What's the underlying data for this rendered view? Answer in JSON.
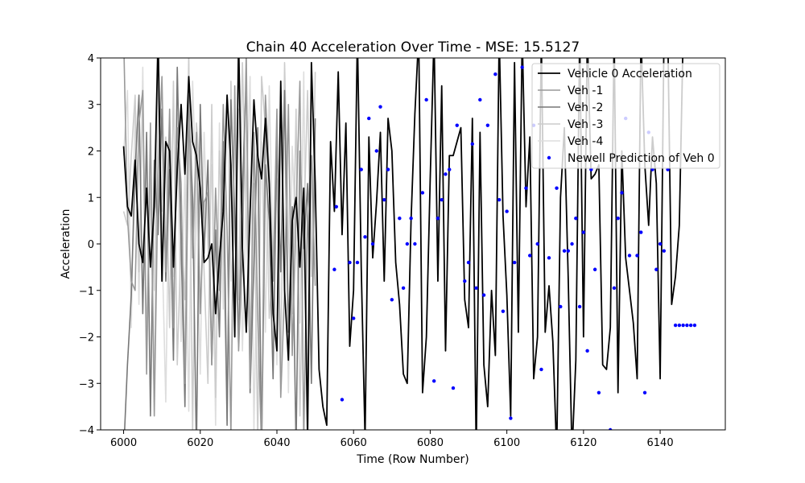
{
  "chart_data": {
    "type": "line",
    "title": "Chain 40 Acceleration Over Time - MSE: 15.5127",
    "xlabel": "Time (Row Number)",
    "ylabel": "Acceleration",
    "xlim": [
      5994,
      6157
    ],
    "ylim": [
      -4,
      4
    ],
    "x_ticks": [
      6000,
      6020,
      6040,
      6060,
      6080,
      6100,
      6120,
      6140
    ],
    "y_ticks": [
      -4,
      -3,
      -2,
      -1,
      0,
      1,
      2,
      3,
      4
    ],
    "y_tick_labels": [
      "−4",
      "−3",
      "−2",
      "−1",
      "0",
      "1",
      "2",
      "3",
      "4"
    ],
    "grid": false,
    "legend_position": "top-right",
    "series": [
      {
        "name": "Vehicle 0 Acceleration",
        "kind": "line",
        "color": "#000000",
        "x_start": 6000,
        "values": [
          2.1,
          0.8,
          0.6,
          1.8,
          0.0,
          -0.4,
          1.2,
          -0.5,
          0.8,
          4.5,
          -0.8,
          2.2,
          2.0,
          -0.5,
          1.6,
          3.0,
          1.5,
          3.6,
          2.2,
          1.9,
          1.2,
          -0.4,
          -0.3,
          0.0,
          -1.5,
          -0.3,
          0.7,
          3.2,
          1.7,
          -2.0,
          4.4,
          -0.1,
          -1.9,
          0.7,
          3.1,
          1.9,
          1.4,
          2.7,
          1.3,
          -1.5,
          -2.3,
          3.5,
          -1.0,
          -2.5,
          0.5,
          1.0,
          -0.5,
          1.2,
          -4.2,
          3.9,
          1.3,
          -2.7,
          -3.5,
          -3.9,
          2.2,
          0.7,
          3.7,
          0.2,
          2.6,
          -2.2,
          -1.0,
          4.5,
          -0.5,
          -4.2,
          2.3,
          -0.3,
          0.9,
          2.4,
          -0.8,
          2.7,
          2.0,
          -0.4,
          -1.3,
          -2.8,
          -3.0,
          0.5,
          2.8,
          4.5,
          -3.2,
          -2.0,
          1.4,
          4.5,
          -0.8,
          3.4,
          -2.3,
          1.9,
          1.9,
          2.2,
          2.5,
          -1.2,
          -1.8,
          2.7,
          -4.5,
          2.4,
          -2.6,
          -3.5,
          -1.0,
          -2.4,
          4.5,
          0.6,
          -1.1,
          -3.7,
          3.9,
          -1.9,
          4.5,
          0.8,
          2.3,
          -2.9,
          -2.0,
          4.4,
          -1.9,
          -0.9,
          -2.1,
          -4.5,
          1.0,
          2.5,
          -0.7,
          -4.5,
          -2.5,
          4.5,
          -2.0,
          4.5,
          1.4,
          1.5,
          1.7,
          -2.6,
          -2.7,
          -1.8,
          4.5,
          -3.2,
          2.0,
          -0.3,
          -1.0,
          -1.7,
          -2.9,
          4.5,
          1.7,
          0.4,
          2.3,
          1.3,
          -2.9,
          4.5,
          4.5,
          -1.3,
          -0.7,
          0.4,
          4.5
        ]
      },
      {
        "name": "Veh -1",
        "kind": "line",
        "color": "#999999",
        "x_start": 6000,
        "values": [
          4.5,
          0.6,
          -0.8,
          -1.0,
          2.6,
          3.3,
          -2.8,
          2.6,
          -3.7,
          1.5,
          3.6,
          -0.6,
          2.9,
          -1.8,
          2.5,
          1.3,
          -3.0,
          3.2,
          -0.3,
          2.4,
          -1.5,
          0.9,
          1.1,
          -2.6,
          1.2,
          -1.0,
          3.0,
          0.3,
          -4.1,
          3.4,
          -2.3,
          -0.2,
          4.1,
          -3.1,
          2.4,
          -1.6,
          -4.4,
          3.2,
          1.5,
          -0.8,
          2.9,
          -3.3,
          -1.0,
          3.0,
          -2.4,
          0.7,
          3.5,
          -4.2,
          0.6,
          1.9,
          -0.9
        ]
      },
      {
        "name": "Veh -2",
        "kind": "line",
        "color": "#777777",
        "x_start": 6000,
        "values": [
          -4.5,
          -2.6,
          -1.1,
          1.6,
          3.2,
          -1.5,
          2.4,
          -3.7,
          1.8,
          0.2,
          2.9,
          -0.8,
          1.6,
          -2.5,
          3.8,
          0.0,
          -3.5,
          2.9,
          1.0,
          -4.5,
          3.0,
          -0.2,
          1.8,
          -2.6,
          0.3,
          -2.0,
          2.2,
          -3.9,
          3.1,
          0.6,
          -2.2,
          1.2,
          3.6,
          -3.2,
          -0.4,
          2.5,
          -4.5,
          1.7,
          0.5,
          -2.9,
          2.3,
          -0.6,
          3.3,
          -1.9,
          0.8,
          -4.4,
          2.0,
          -0.1,
          1.3,
          -3.0,
          2.7
        ]
      },
      {
        "name": "Veh -3",
        "kind": "line",
        "color": "#cccccc",
        "x_start": 6000,
        "values": [
          0.7,
          0.4,
          1.9,
          3.2,
          -0.6,
          3.2,
          -2.1,
          1.4,
          -3.4,
          3.9,
          0.7,
          2.3,
          -1.8,
          3.5,
          -2.6,
          0.2,
          -1.2,
          4.1,
          -4.1,
          2.6,
          1.5,
          -0.6,
          -3.0,
          3.0,
          -3.3,
          2.0,
          0.0,
          -3.8,
          3.5,
          0.1,
          -1.2,
          3.9,
          0.7,
          -2.5,
          1.3,
          -4.2,
          3.6,
          2.5,
          -1.6,
          -0.5,
          1.4,
          -2.7,
          3.9,
          0.2,
          -1.5,
          2.9,
          -3.7,
          0.3,
          3.3,
          -0.7,
          3.7
        ]
      },
      {
        "name": "Veh -4",
        "kind": "line",
        "color": "#dddddd",
        "x_start": 6000,
        "values": [
          1.9,
          3.3,
          -1.8,
          3.1,
          -1.3,
          3.8,
          -2.7,
          1.8,
          -1.0,
          4.5,
          0.1,
          -3.4,
          2.2,
          -0.7,
          2.8,
          -2.1,
          1.6,
          -3.6,
          3.5,
          0.9,
          -2.8,
          2.4,
          -0.2,
          1.7,
          -3.9,
          2.6,
          -1.4,
          3.2,
          -0.8,
          0.4,
          2.9,
          -2.3,
          1.0,
          3.6,
          -4.0,
          0.6,
          2.2,
          -1.9,
          3.4,
          -0.4,
          -2.6,
          1.8,
          3.0,
          -3.2,
          2.1,
          0.0,
          -1.7,
          3.7,
          -4.3,
          1.2,
          2.6
        ]
      },
      {
        "name": "Newell Prediction of Veh 0",
        "kind": "scatter",
        "color": "#0000ff",
        "points": [
          [
            6055,
            -0.55
          ],
          [
            6055.5,
            0.8
          ],
          [
            6057,
            -3.35
          ],
          [
            6059,
            -0.4
          ],
          [
            6060,
            -1.6
          ],
          [
            6061,
            -0.4
          ],
          [
            6062,
            1.6
          ],
          [
            6063,
            0.15
          ],
          [
            6064,
            2.7
          ],
          [
            6065,
            0.0
          ],
          [
            6066,
            2.0
          ],
          [
            6067,
            2.95
          ],
          [
            6068,
            0.95
          ],
          [
            6069,
            1.6
          ],
          [
            6070,
            -1.2
          ],
          [
            6072,
            0.55
          ],
          [
            6073,
            -0.95
          ],
          [
            6074,
            0.0
          ],
          [
            6075,
            0.55
          ],
          [
            6076,
            0.0
          ],
          [
            6078,
            1.1
          ],
          [
            6079,
            3.1
          ],
          [
            6081,
            -2.95
          ],
          [
            6082,
            0.55
          ],
          [
            6083,
            0.95
          ],
          [
            6084,
            1.5
          ],
          [
            6085,
            1.6
          ],
          [
            6086,
            -3.1
          ],
          [
            6087,
            2.55
          ],
          [
            6089,
            -0.8
          ],
          [
            6090,
            -0.4
          ],
          [
            6091,
            2.15
          ],
          [
            6092,
            -0.95
          ],
          [
            6093,
            3.1
          ],
          [
            6094,
            -1.1
          ],
          [
            6095,
            2.55
          ],
          [
            6097,
            3.65
          ],
          [
            6098,
            0.95
          ],
          [
            6099,
            -1.45
          ],
          [
            6100,
            0.7
          ],
          [
            6101,
            -3.75
          ],
          [
            6102,
            -0.4
          ],
          [
            6104,
            3.8
          ],
          [
            6105,
            1.2
          ],
          [
            6106,
            -0.25
          ],
          [
            6107,
            2.55
          ],
          [
            6108,
            0.0
          ],
          [
            6109,
            -2.7
          ],
          [
            6111,
            -0.3
          ],
          [
            6113,
            1.2
          ],
          [
            6114,
            -1.35
          ],
          [
            6115,
            -0.15
          ],
          [
            6116,
            -0.15
          ],
          [
            6117,
            0.0
          ],
          [
            6118,
            0.55
          ],
          [
            6119,
            -1.35
          ],
          [
            6120,
            0.25
          ],
          [
            6121,
            -2.3
          ],
          [
            6122,
            1.6
          ],
          [
            6123,
            -0.55
          ],
          [
            6124,
            -3.2
          ],
          [
            6127,
            -4.0
          ],
          [
            6128,
            -0.95
          ],
          [
            6129,
            0.55
          ],
          [
            6130,
            1.1
          ],
          [
            6131,
            2.7
          ],
          [
            6132,
            -0.25
          ],
          [
            6134,
            -0.25
          ],
          [
            6135,
            0.25
          ],
          [
            6136,
            -3.2
          ],
          [
            6137,
            2.4
          ],
          [
            6138,
            1.6
          ],
          [
            6139,
            -0.55
          ],
          [
            6140,
            0.0
          ],
          [
            6141,
            -0.15
          ],
          [
            6142,
            1.6
          ],
          [
            6144,
            -1.75
          ],
          [
            6145,
            -1.75
          ],
          [
            6146,
            -1.75
          ],
          [
            6147,
            -1.75
          ],
          [
            6148,
            -1.75
          ],
          [
            6149,
            -1.75
          ]
        ]
      }
    ]
  }
}
